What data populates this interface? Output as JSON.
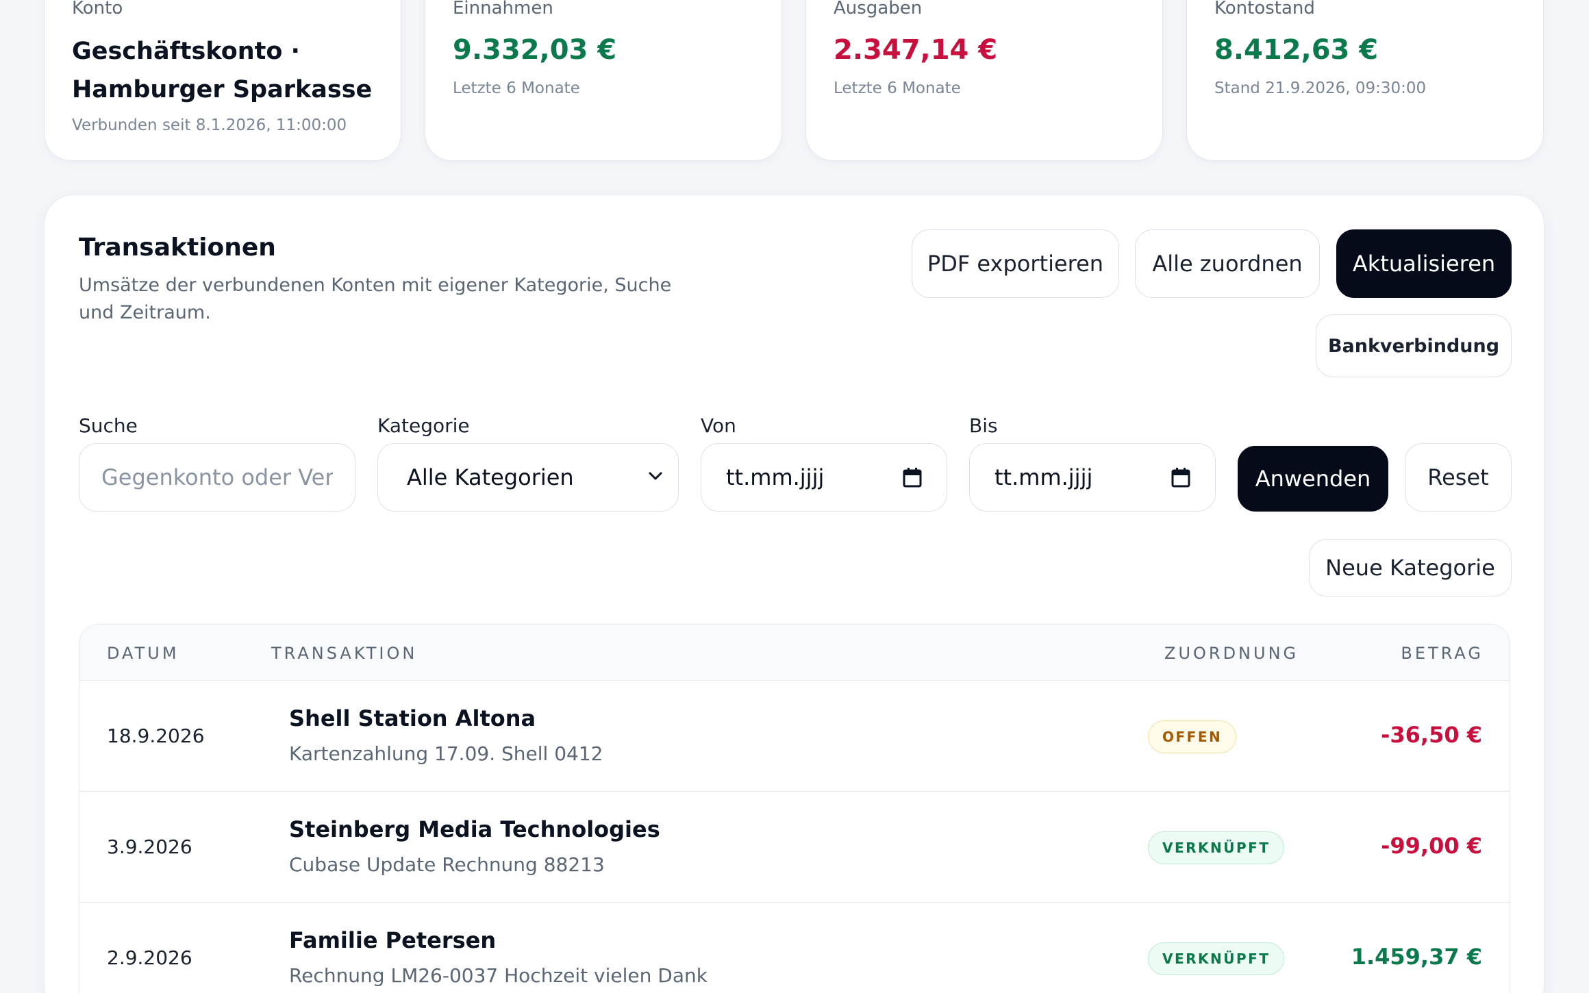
{
  "cards": [
    {
      "label": "Konto",
      "title_line1": "Geschäftskonto ·",
      "title_line2": "Hamburger Sparkasse",
      "sub": "Verbunden seit 8.1.2026, 11:00:00"
    },
    {
      "label": "Einnahmen",
      "value": "9.332,03 €",
      "sub": "Letzte 6 Monate",
      "color": "#0a7a4c"
    },
    {
      "label": "Ausgaben",
      "value": "2.347,14 €",
      "sub": "Letzte 6 Monate",
      "color": "#c8103e"
    },
    {
      "label": "Kontostand",
      "value": "8.412,63 €",
      "sub": "Stand 21.9.2026, 09:30:00",
      "color": "#0a7a4c"
    }
  ],
  "panel": {
    "title": "Transaktionen",
    "description": "Umsätze der verbundenen Konten mit eigener Kategorie, Suche und Zeitraum."
  },
  "actions": {
    "pdf_export": "PDF exportieren",
    "assign_all": "Alle zuordnen",
    "refresh": "Aktualisieren",
    "bank_connection": "Bankverbindung"
  },
  "filters": {
    "search_label": "Suche",
    "search_placeholder": "Gegenkonto oder Verw",
    "category_label": "Kategorie",
    "category_value": "Alle Kategorien",
    "from_label": "Von",
    "from_placeholder": "tt.mm.jjjj",
    "to_label": "Bis",
    "to_placeholder": "tt.mm.jjjj",
    "apply": "Anwenden",
    "reset": "Reset",
    "new_category": "Neue Kategorie"
  },
  "table": {
    "headers": {
      "date": "DATUM",
      "transaction": "TRANSAKTION",
      "assignment": "ZUORDNUNG",
      "amount": "BETRAG"
    },
    "rows": [
      {
        "date": "18.9.2026",
        "name": "Shell Station Altona",
        "memo": "Kartenzahlung 17.09. Shell 0412",
        "status": "OFFEN",
        "status_type": "open",
        "amount": "-36,50 €",
        "amount_type": "negative"
      },
      {
        "date": "3.9.2026",
        "name": "Steinberg Media Technologies",
        "memo": "Cubase Update Rechnung 88213",
        "status": "VERKNÜPFT",
        "status_type": "linked",
        "amount": "-99,00 €",
        "amount_type": "negative"
      },
      {
        "date": "2.9.2026",
        "name": "Familie Petersen",
        "memo": "Rechnung LM26-0037 Hochzeit vielen Dank",
        "status": "VERKNÜPFT",
        "status_type": "linked",
        "amount": "1.459,37 €",
        "amount_type": "positive"
      }
    ]
  },
  "colors": {
    "positive": "#0a7a4c",
    "negative": "#c8103e",
    "primary_button": "#050b18"
  }
}
